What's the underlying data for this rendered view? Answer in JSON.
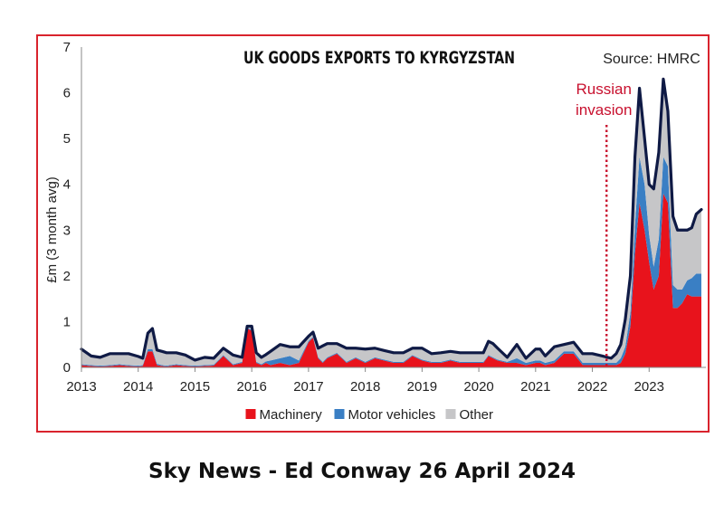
{
  "chart_data": {
    "type": "area",
    "title": "UK GOODS EXPORTS TO KYRGYZSTAN",
    "source_note": "Source: HMRC",
    "ylabel": "£m (3 month avg)",
    "ylim": [
      0,
      7
    ],
    "y_ticks": [
      "0",
      "1",
      "2",
      "3",
      "4",
      "5",
      "6",
      "7"
    ],
    "x_ticks": [
      "2013",
      "2014",
      "2015",
      "2016",
      "2017",
      "2018",
      "2019",
      "2020",
      "2021",
      "2022",
      "2023"
    ],
    "xlim": [
      2013.0,
      2024.0
    ],
    "grid": false,
    "legend_position": "bottom",
    "annotation": {
      "lines": [
        "Russian",
        "invasion"
      ],
      "x": 2022.25,
      "color": "#c8102e"
    },
    "colors": {
      "machinery": "#e8131c",
      "motor_vehicles": "#3a7fc4",
      "other": "#c6c6c8",
      "total_line": "#0f1a45"
    },
    "x": [
      2013.0,
      2013.17,
      2013.33,
      2013.5,
      2013.67,
      2013.83,
      2014.0,
      2014.08,
      2014.17,
      2014.25,
      2014.33,
      2014.42,
      2014.5,
      2014.67,
      2014.83,
      2015.0,
      2015.17,
      2015.33,
      2015.5,
      2015.67,
      2015.83,
      2015.92,
      2016.0,
      2016.08,
      2016.17,
      2016.25,
      2016.33,
      2016.5,
      2016.67,
      2016.83,
      2017.0,
      2017.08,
      2017.17,
      2017.25,
      2017.33,
      2017.5,
      2017.67,
      2017.83,
      2018.0,
      2018.17,
      2018.33,
      2018.5,
      2018.67,
      2018.83,
      2019.0,
      2019.17,
      2019.33,
      2019.5,
      2019.67,
      2019.83,
      2020.0,
      2020.08,
      2020.17,
      2020.25,
      2020.33,
      2020.5,
      2020.67,
      2020.83,
      2021.0,
      2021.08,
      2021.17,
      2021.33,
      2021.5,
      2021.67,
      2021.83,
      2022.0,
      2022.17,
      2022.33,
      2022.42,
      2022.5,
      2022.58,
      2022.67,
      2022.75,
      2022.83,
      2022.92,
      2023.0,
      2023.08,
      2023.17,
      2023.25,
      2023.33,
      2023.42,
      2023.5,
      2023.58,
      2023.67,
      2023.75,
      2023.83,
      2023.92
    ],
    "series": [
      {
        "name": "Machinery",
        "values": [
          0.05,
          0.03,
          0.02,
          0.03,
          0.05,
          0.03,
          0.02,
          0.03,
          0.35,
          0.35,
          0.05,
          0.03,
          0.02,
          0.05,
          0.03,
          0.02,
          0.03,
          0.04,
          0.25,
          0.05,
          0.1,
          0.85,
          0.8,
          0.1,
          0.05,
          0.1,
          0.05,
          0.1,
          0.05,
          0.1,
          0.55,
          0.65,
          0.2,
          0.1,
          0.2,
          0.3,
          0.1,
          0.2,
          0.1,
          0.2,
          0.15,
          0.1,
          0.1,
          0.25,
          0.15,
          0.1,
          0.1,
          0.15,
          0.1,
          0.1,
          0.1,
          0.1,
          0.25,
          0.2,
          0.15,
          0.1,
          0.1,
          0.05,
          0.1,
          0.1,
          0.05,
          0.1,
          0.3,
          0.3,
          0.05,
          0.05,
          0.05,
          0.05,
          0.05,
          0.1,
          0.3,
          0.9,
          2.5,
          3.6,
          3.0,
          2.3,
          1.7,
          2.0,
          3.8,
          3.6,
          1.3,
          1.3,
          1.4,
          1.6,
          1.55,
          1.55,
          1.55
        ]
      },
      {
        "name": "Motor vehicles",
        "values": [
          0.02,
          0.02,
          0.02,
          0.02,
          0.02,
          0.02,
          0.02,
          0.02,
          0.05,
          0.05,
          0.03,
          0.02,
          0.02,
          0.02,
          0.02,
          0.02,
          0.02,
          0.02,
          0.02,
          0.02,
          0.02,
          0.02,
          0.02,
          0.02,
          0.02,
          0.03,
          0.1,
          0.1,
          0.2,
          0.05,
          0.03,
          0.02,
          0.02,
          0.02,
          0.02,
          0.02,
          0.02,
          0.02,
          0.02,
          0.02,
          0.02,
          0.02,
          0.02,
          0.02,
          0.02,
          0.02,
          0.02,
          0.02,
          0.02,
          0.02,
          0.02,
          0.02,
          0.02,
          0.02,
          0.02,
          0.02,
          0.1,
          0.05,
          0.05,
          0.05,
          0.05,
          0.05,
          0.05,
          0.05,
          0.05,
          0.05,
          0.05,
          0.05,
          0.05,
          0.1,
          0.15,
          0.3,
          0.6,
          1.0,
          1.0,
          0.6,
          0.5,
          0.8,
          0.8,
          0.8,
          0.5,
          0.4,
          0.3,
          0.3,
          0.4,
          0.5,
          0.5
        ]
      },
      {
        "name": "Other",
        "values": [
          0.33,
          0.2,
          0.18,
          0.25,
          0.23,
          0.25,
          0.2,
          0.15,
          0.35,
          0.45,
          0.3,
          0.3,
          0.28,
          0.25,
          0.22,
          0.12,
          0.17,
          0.14,
          0.15,
          0.2,
          0.1,
          0.03,
          0.08,
          0.2,
          0.15,
          0.15,
          0.2,
          0.3,
          0.2,
          0.3,
          0.1,
          0.1,
          0.2,
          0.35,
          0.3,
          0.2,
          0.3,
          0.2,
          0.28,
          0.2,
          0.2,
          0.2,
          0.2,
          0.15,
          0.25,
          0.18,
          0.2,
          0.18,
          0.2,
          0.2,
          0.2,
          0.2,
          0.3,
          0.3,
          0.25,
          0.1,
          0.3,
          0.1,
          0.25,
          0.25,
          0.15,
          0.3,
          0.15,
          0.2,
          0.2,
          0.2,
          0.15,
          0.1,
          0.2,
          0.3,
          0.6,
          0.8,
          1.5,
          1.5,
          1.0,
          1.1,
          1.7,
          1.9,
          1.7,
          1.2,
          1.5,
          1.3,
          1.3,
          1.1,
          1.1,
          1.3,
          1.4
        ]
      }
    ]
  },
  "credit": "Sky News - Ed Conway 26 April 2024"
}
